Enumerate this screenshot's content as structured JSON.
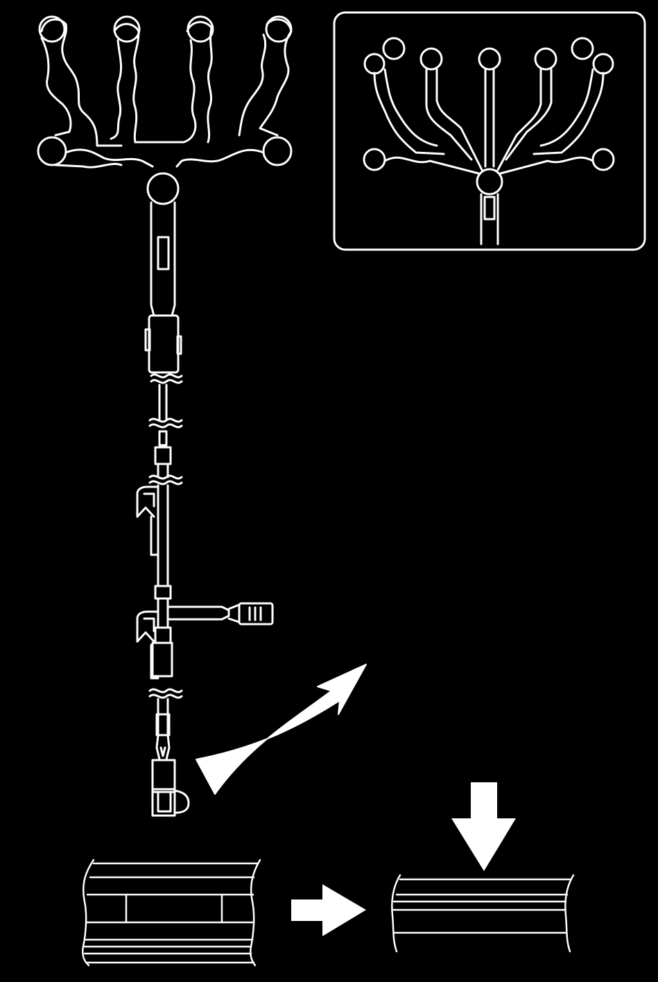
{
  "figure": {
    "background": "#000000",
    "line_color": "#ffffff",
    "icons": [
      "harness-assembly",
      "sensor-mat-inset",
      "connector-zoom-arrow",
      "tape-before-wrap",
      "process-arrow",
      "press-arrow",
      "tape-after-wrap"
    ]
  }
}
